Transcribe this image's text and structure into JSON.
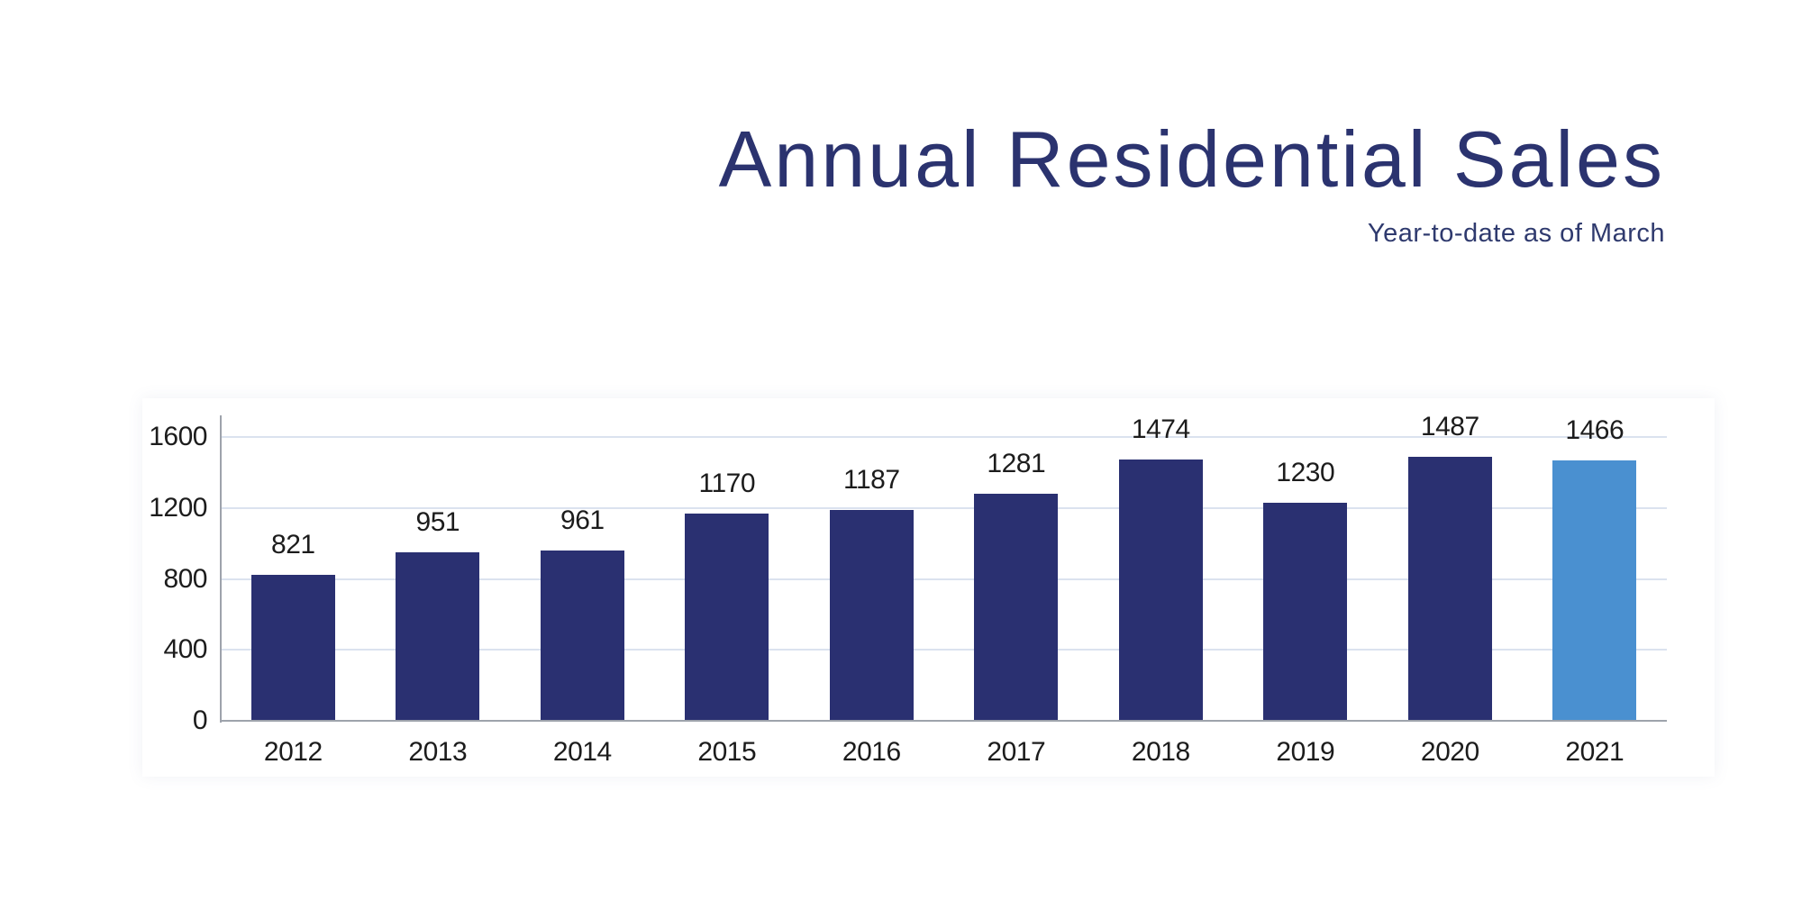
{
  "chart_data": {
    "type": "bar",
    "title": "Annual Residential Sales",
    "subtitle": "Year-to-date as of March",
    "categories": [
      "2012",
      "2013",
      "2014",
      "2015",
      "2016",
      "2017",
      "2018",
      "2019",
      "2020",
      "2021"
    ],
    "values": [
      821,
      951,
      961,
      1170,
      1187,
      1281,
      1474,
      1230,
      1487,
      1466
    ],
    "value_labels": [
      "821",
      "951",
      "961",
      "1170",
      "1187",
      "1281",
      "1474",
      "1230",
      "1487",
      "1466"
    ],
    "highlight_index": 9,
    "ylim": [
      0,
      1600
    ],
    "yticks": [
      0,
      400,
      800,
      1200,
      1600
    ],
    "ytick_labels": [
      "0",
      "400",
      "800",
      "1200",
      "1600"
    ],
    "grid": "horizontal",
    "legend": "none",
    "xlabel": "",
    "ylabel": ""
  },
  "colors": {
    "bar": "#2A3071",
    "bar_highlight": "#4A90D0",
    "title_text": "#2B336F",
    "subtitle_text": "#2F3A6E",
    "label_text": "#1C1C1C",
    "gridline": "#DBE2EF",
    "axis_line": "#9EA3AC",
    "background": "#FFFFFF"
  }
}
